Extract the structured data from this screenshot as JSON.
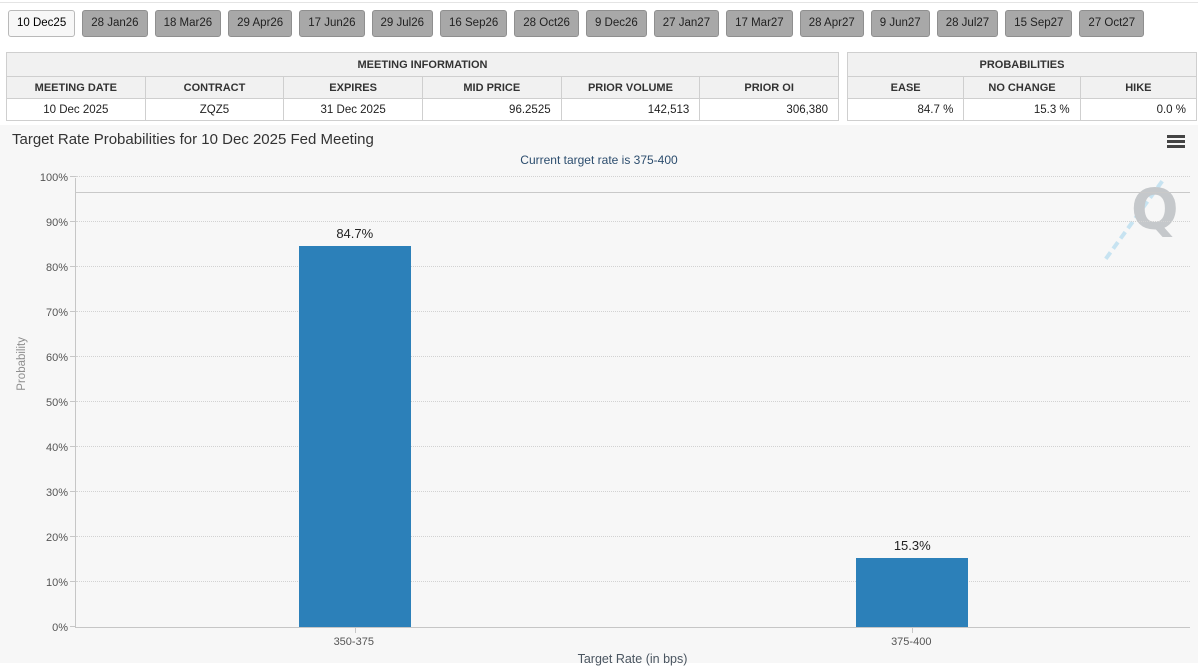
{
  "tab_bar": {
    "tabs": [
      "10 Dec25",
      "28 Jan26",
      "18 Mar26",
      "29 Apr26",
      "17 Jun26",
      "29 Jul26",
      "16 Sep26",
      "28 Oct26",
      "9 Dec26",
      "27 Jan27",
      "17 Mar27",
      "28 Apr27",
      "9 Jun27",
      "28 Jul27",
      "15 Sep27",
      "27 Oct27"
    ],
    "active_tab": "10 Dec25"
  },
  "meeting_info": {
    "title": "MEETING INFORMATION",
    "columns": [
      "MEETING DATE",
      "CONTRACT",
      "EXPIRES",
      "MID PRICE",
      "PRIOR VOLUME",
      "PRIOR OI"
    ],
    "values": [
      "10 Dec 2025",
      "ZQZ5",
      "31 Dec 2025",
      "96.2525",
      "142,513",
      "306,380"
    ]
  },
  "probabilities": {
    "title": "PROBABILITIES",
    "columns": [
      "EASE",
      "NO CHANGE",
      "HIKE"
    ],
    "values": [
      "84.7 %",
      "15.3 %",
      "0.0 %"
    ]
  },
  "chart": {
    "title": "Target Rate Probabilities for 10 Dec 2025 Fed Meeting",
    "subtitle": "Current target rate is 375-400",
    "menu_icon": "hamburger-menu-icon",
    "watermark_letter": "Q"
  },
  "chart_data": {
    "type": "bar",
    "title": "Target Rate Probabilities for 10 Dec 2025 Fed Meeting",
    "subtitle": "Current target rate is 375-400",
    "categories": [
      "350-375",
      "375-400"
    ],
    "values": [
      84.7,
      15.3
    ],
    "data_labels": [
      "84.7%",
      "15.3%"
    ],
    "xlabel": "Target Rate (in bps)",
    "ylabel": "Probability",
    "ylim": [
      0,
      100
    ],
    "ytick_step": 10,
    "ytick_suffix": "%",
    "ref_line": 96.4,
    "bar_color": "#2C80B9",
    "grid": true,
    "legend": false
  },
  "colors": {
    "bar": "#2C80B9",
    "subtitle": "#2c4d6e",
    "chart_bg": "#f7f7f7",
    "tab_inactive_bg": "#a8a8a8",
    "tab_active_bg": "#f7f7f7",
    "table_header_bg": "#f1f1f1",
    "grid_line": "#d2d2d2"
  }
}
